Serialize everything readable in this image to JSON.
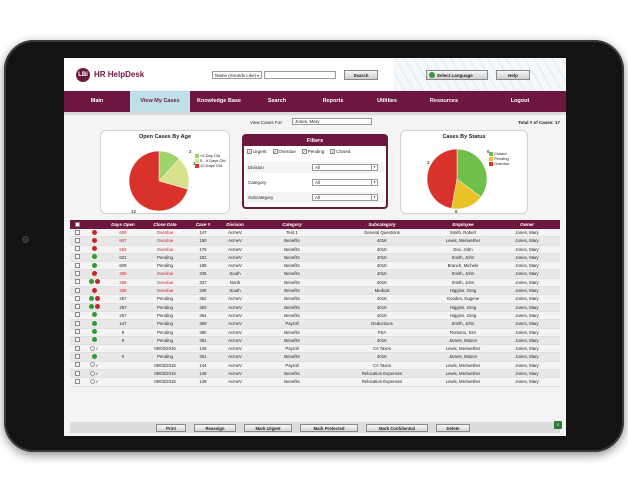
{
  "header": {
    "logo_text": "LBi",
    "app_name": "HR HelpDesk",
    "search_scope": "Name (Sounds Like)",
    "search_button": "Search",
    "language_button": "Select Language",
    "help_button": "Help"
  },
  "nav": {
    "tabs": [
      {
        "label": "Main",
        "w": 66
      },
      {
        "label": "View My Cases",
        "w": 60
      },
      {
        "label": "Knowledge Base",
        "w": 58
      },
      {
        "label": "Search",
        "w": 58
      },
      {
        "label": "Reports",
        "w": 54
      },
      {
        "label": "Utilities",
        "w": 54
      },
      {
        "label": "Resources",
        "w": 60
      },
      {
        "label": "Logout",
        "w": 92
      }
    ],
    "active_tab": 1
  },
  "toolbar": {
    "view_cases_for_label": "View Cases For:",
    "view_cases_for_value": "Jones, Mary",
    "total_label": "Total # of Cases: 17"
  },
  "open_cases_by_age": {
    "title": "Open Cases By Age",
    "labels": [
      "2",
      "3",
      "12"
    ],
    "legend": [
      "<5 Day Old",
      "5 - 9 Days Old",
      "10 Days Old"
    ],
    "colors": [
      "#9dd56a",
      "#d7e28a",
      "#d9322b"
    ]
  },
  "filters": {
    "title": "Filters",
    "checkboxes": [
      {
        "label": "Urgent",
        "checked": true
      },
      {
        "label": "Overdue",
        "checked": true
      },
      {
        "label": "Pending",
        "checked": true
      },
      {
        "label": "Closed",
        "checked": true
      }
    ],
    "fields": [
      {
        "label": "Division",
        "value": "All"
      },
      {
        "label": "Category",
        "value": "All"
      },
      {
        "label": "Subcategory",
        "value": "All"
      }
    ]
  },
  "cases_by_status": {
    "title": "Cases By Status",
    "labels": [
      "6",
      "3",
      "8"
    ],
    "legend": [
      "Closed",
      "Pending",
      "Overdue"
    ],
    "colors": [
      "#6fbf4a",
      "#e8c227",
      "#d9322b"
    ]
  },
  "table": {
    "headers": [
      "Days Open",
      "Close Date",
      "Case #",
      "Division",
      "Category",
      "Subcategory",
      "Employee",
      "Owner"
    ],
    "rows": [
      {
        "dots": [
          "red"
        ],
        "days": "609",
        "close": "Overdue",
        "case": "147",
        "division": "AcmeV",
        "category": "Test 1",
        "sub": "General Questions",
        "emp": "Smith, Robert",
        "owner": "Jones, Mary",
        "red": true
      },
      {
        "dots": [
          "red"
        ],
        "days": "667",
        "close": "Overdue",
        "case": "150",
        "division": "AcmeV",
        "category": "Benefits",
        "sub": "401K",
        "emp": "Lewis, Meriwether",
        "owner": "Jones, Mary",
        "red": true
      },
      {
        "dots": [
          "red"
        ],
        "days": "663",
        "close": "Overdue",
        "case": "175",
        "division": "AcmeV",
        "category": "Benefits",
        "sub": "401K",
        "emp": "Dox, John",
        "owner": "Jones, Mary",
        "red": true
      },
      {
        "dots": [
          "green"
        ],
        "days": "621",
        "close": "Pending",
        "case": "181",
        "division": "AcmeV",
        "category": "Benefits",
        "sub": "401K",
        "emp": "Smith, John",
        "owner": "Jones, Mary",
        "red": false
      },
      {
        "dots": [
          "green"
        ],
        "days": "609",
        "close": "Pending",
        "case": "185",
        "division": "AcmeV",
        "category": "Benefits",
        "sub": "401K",
        "emp": "Branch, Michele",
        "owner": "Jones, Mary",
        "red": false
      },
      {
        "dots": [
          "red"
        ],
        "days": "258",
        "close": "Overdue",
        "case": "336",
        "division": "South",
        "category": "Benefits",
        "sub": "401K",
        "emp": "Smith, John",
        "owner": "Jones, Mary",
        "red": true
      },
      {
        "dots": [
          "green",
          "red"
        ],
        "days": "258",
        "close": "Overdue",
        "case": "337",
        "division": "North",
        "category": "Benefits",
        "sub": "401K",
        "emp": "Smith, John",
        "owner": "Jones, Mary",
        "red": true
      },
      {
        "dots": [
          "red"
        ],
        "days": "258",
        "close": "Overdue",
        "case": "338",
        "division": "South",
        "category": "Benefits",
        "sub": "Medical",
        "emp": "Higgins, Greg",
        "owner": "Jones, Mary",
        "red": true
      },
      {
        "dots": [
          "green",
          "red"
        ],
        "days": "257",
        "close": "Pending",
        "case": "362",
        "division": "AcmeV",
        "category": "Benefits",
        "sub": "401K",
        "emp": "Gooden, Eugene",
        "owner": "Jones, Mary",
        "red": false
      },
      {
        "dots": [
          "green",
          "red"
        ],
        "days": "257",
        "close": "Pending",
        "case": "363",
        "division": "AcmeV",
        "category": "Benefits",
        "sub": "401K",
        "emp": "Higgins, Greg",
        "owner": "Jones, Mary",
        "red": false
      },
      {
        "dots": [
          "green"
        ],
        "days": "257",
        "close": "Pending",
        "case": "364",
        "division": "AcmeV",
        "category": "Benefits",
        "sub": "401K",
        "emp": "Higgins, Greg",
        "owner": "Jones, Mary",
        "red": false
      },
      {
        "dots": [
          "green"
        ],
        "days": "147",
        "close": "Pending",
        "case": "369",
        "division": "AcmeV",
        "category": "Payroll",
        "sub": "Deductions",
        "emp": "Smith, John",
        "owner": "Jones, Mary",
        "red": false
      },
      {
        "dots": [
          "green"
        ],
        "days": "9",
        "close": "Pending",
        "case": "380",
        "division": "AcmeV",
        "category": "Benefits",
        "sub": "FSA",
        "emp": "Romano, Kim",
        "owner": "Jones, Mary",
        "red": false
      },
      {
        "dots": [
          "green"
        ],
        "days": "8",
        "close": "Pending",
        "case": "381",
        "division": "AcmeV",
        "category": "Benefits",
        "sub": "401K",
        "emp": "James, Mason",
        "owner": "Jones, Mary",
        "red": false
      },
      {
        "dots": [
          "white",
          "check"
        ],
        "days": "",
        "close": "09/03/2016",
        "case": "145",
        "division": "AcmeV",
        "category": "Payroll",
        "sub": "CA Taxes",
        "emp": "Lewis, Meriwether",
        "owner": "Jones, Mary",
        "red": false
      },
      {
        "dots": [
          "green"
        ],
        "days": "0",
        "close": "Pending",
        "case": "361",
        "division": "AcmeV",
        "category": "Benefits",
        "sub": "401K",
        "emp": "James, Mason",
        "owner": "Jones, Mary",
        "red": false
      },
      {
        "dots": [
          "white",
          "check"
        ],
        "days": "",
        "close": "09/03/2016",
        "case": "144",
        "division": "AcmeV",
        "category": "Payroll",
        "sub": "CA Taxes",
        "emp": "Lewis, Meriwether",
        "owner": "Jones, Mary",
        "red": false
      },
      {
        "dots": [
          "white",
          "check"
        ],
        "days": "",
        "close": "09/03/2016",
        "case": "148",
        "division": "AcmeV",
        "category": "Benefits",
        "sub": "Relocation Expenses",
        "emp": "Lewis, Meriwether",
        "owner": "Jones, Mary",
        "red": false
      },
      {
        "dots": [
          "white",
          "check"
        ],
        "days": "",
        "close": "09/03/2016",
        "case": "149",
        "division": "AcmeV",
        "category": "Benefits",
        "sub": "Relocation Expenses",
        "emp": "Lewis, Meriwether",
        "owner": "Jones, Mary",
        "red": false
      }
    ]
  },
  "buttons": [
    "Print",
    "Reassign",
    "Mark Urgent",
    "Mark Protected",
    "Mark Confidential",
    "Delete"
  ],
  "export_label": "X"
}
